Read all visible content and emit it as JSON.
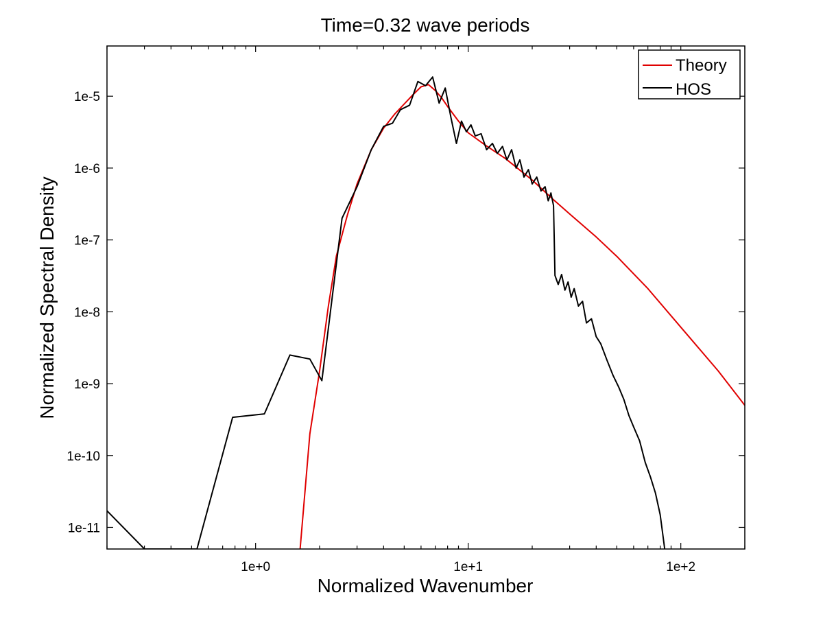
{
  "chart_data": {
    "type": "line",
    "scale": {
      "x": "log",
      "y": "log"
    },
    "title": "Time=0.32 wave periods",
    "xlabel": "Normalized Wavenumber",
    "ylabel": "Normalized Spectral Density",
    "xlim": [
      0.2,
      200
    ],
    "ylim": [
      5e-12,
      5e-05
    ],
    "x_ticks": [
      {
        "value": 1,
        "label": "1e+0"
      },
      {
        "value": 10,
        "label": "1e+1"
      },
      {
        "value": 100,
        "label": "1e+2"
      }
    ],
    "y_ticks": [
      {
        "value": 1e-11,
        "label": "1e-11"
      },
      {
        "value": 1e-10,
        "label": "1e-10"
      },
      {
        "value": 1e-09,
        "label": "1e-9"
      },
      {
        "value": 1e-08,
        "label": "1e-8"
      },
      {
        "value": 1e-07,
        "label": "1e-7"
      },
      {
        "value": 1e-06,
        "label": "1e-6"
      },
      {
        "value": 1e-05,
        "label": "1e-5"
      }
    ],
    "legend": {
      "position": "top-right"
    },
    "series": [
      {
        "name": "Theory",
        "color": "#e00000",
        "points": [
          [
            1.62,
            5e-12
          ],
          [
            1.8,
            2e-10
          ],
          [
            2.0,
            1.5e-09
          ],
          [
            2.2,
            1.2e-08
          ],
          [
            2.4,
            6e-08
          ],
          [
            2.7,
            2.2e-07
          ],
          [
            3.0,
            6e-07
          ],
          [
            3.5,
            1.8e-06
          ],
          [
            4.0,
            3.6e-06
          ],
          [
            4.5,
            5.6e-06
          ],
          [
            5.0,
            7.8e-06
          ],
          [
            5.5,
            1.05e-05
          ],
          [
            6.0,
            1.35e-05
          ],
          [
            6.5,
            1.45e-05
          ],
          [
            7.0,
            1.2e-05
          ],
          [
            7.5,
            9.5e-06
          ],
          [
            8.0,
            7.2e-06
          ],
          [
            9.0,
            4.5e-06
          ],
          [
            10.0,
            3.1e-06
          ],
          [
            12.0,
            2.1e-06
          ],
          [
            15.0,
            1.35e-06
          ],
          [
            20.0,
            6.8e-07
          ],
          [
            25.0,
            3.7e-07
          ],
          [
            30.0,
            2.3e-07
          ],
          [
            40.0,
            1.1e-07
          ],
          [
            50.0,
            5.9e-08
          ],
          [
            70.0,
            2.1e-08
          ],
          [
            100.0,
            6.1e-09
          ],
          [
            150.0,
            1.5e-09
          ],
          [
            200.0,
            5e-10
          ]
        ]
      },
      {
        "name": "HOS",
        "color": "#000000",
        "points": [
          [
            0.2,
            1.7e-11
          ],
          [
            0.3,
            5e-12
          ],
          [
            0.53,
            5e-12
          ],
          [
            0.78,
            3.4e-10
          ],
          [
            1.1,
            3.8e-10
          ],
          [
            1.45,
            2.5e-09
          ],
          [
            1.8,
            2.2e-09
          ],
          [
            2.05,
            1.1e-09
          ],
          [
            2.55,
            2e-07
          ],
          [
            3.0,
            5.5e-07
          ],
          [
            3.5,
            1.8e-06
          ],
          [
            4.0,
            3.8e-06
          ],
          [
            4.4,
            4.2e-06
          ],
          [
            4.8,
            6.5e-06
          ],
          [
            5.3,
            7.5e-06
          ],
          [
            5.8,
            1.6e-05
          ],
          [
            6.3,
            1.4e-05
          ],
          [
            6.8,
            1.85e-05
          ],
          [
            7.3,
            8e-06
          ],
          [
            7.8,
            1.3e-05
          ],
          [
            8.3,
            5e-06
          ],
          [
            8.8,
            2.2e-06
          ],
          [
            9.3,
            4.5e-06
          ],
          [
            9.8,
            3.2e-06
          ],
          [
            10.3,
            4e-06
          ],
          [
            10.8,
            2.8e-06
          ],
          [
            11.5,
            3e-06
          ],
          [
            12.2,
            1.8e-06
          ],
          [
            13.0,
            2.2e-06
          ],
          [
            13.7,
            1.6e-06
          ],
          [
            14.5,
            2e-06
          ],
          [
            15.2,
            1.3e-06
          ],
          [
            16.0,
            1.8e-06
          ],
          [
            16.8,
            1e-06
          ],
          [
            17.5,
            1.3e-06
          ],
          [
            18.3,
            7.5e-07
          ],
          [
            19.2,
            9.5e-07
          ],
          [
            20.0,
            6e-07
          ],
          [
            21.0,
            7.5e-07
          ],
          [
            22.0,
            4.8e-07
          ],
          [
            23.0,
            5.5e-07
          ],
          [
            23.8,
            3.5e-07
          ],
          [
            24.5,
            4.5e-07
          ],
          [
            25.2,
            3e-07
          ],
          [
            25.6,
            3.2e-08
          ],
          [
            26.5,
            2.4e-08
          ],
          [
            27.5,
            3.3e-08
          ],
          [
            28.5,
            2e-08
          ],
          [
            29.5,
            2.6e-08
          ],
          [
            30.5,
            1.6e-08
          ],
          [
            31.5,
            2.1e-08
          ],
          [
            33.0,
            1.2e-08
          ],
          [
            34.5,
            1.4e-08
          ],
          [
            36.0,
            7e-09
          ],
          [
            38.0,
            8e-09
          ],
          [
            40.0,
            4.5e-09
          ],
          [
            42.0,
            3.6e-09
          ],
          [
            45.0,
            2.1e-09
          ],
          [
            48.0,
            1.3e-09
          ],
          [
            51.0,
            9e-10
          ],
          [
            54.0,
            6e-10
          ],
          [
            57.0,
            3.6e-10
          ],
          [
            60.0,
            2.5e-10
          ],
          [
            64.0,
            1.6e-10
          ],
          [
            68.0,
            8e-11
          ],
          [
            72.0,
            5e-11
          ],
          [
            76.0,
            3e-11
          ],
          [
            80.0,
            1.5e-11
          ],
          [
            84.0,
            5e-12
          ]
        ]
      }
    ]
  }
}
